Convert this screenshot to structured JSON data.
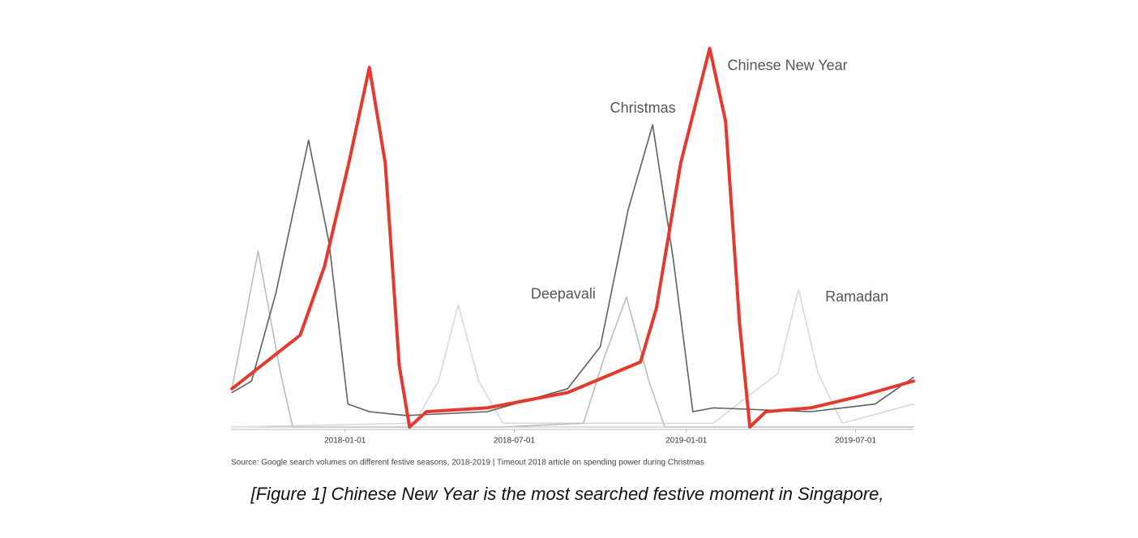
{
  "chart_data": {
    "type": "line",
    "source": "Source: Google search volumes on different festive seasons, 2018-2019 | Timeout 2018 article on spending power during Christmas",
    "caption": "[Figure 1] Chinese New Year is the most searched festive moment in Singapore,",
    "xlim": [
      "2017-09-01",
      "2019-09-01"
    ],
    "xticks": [
      "2018-01-01",
      "2018-07-01",
      "2019-01-01",
      "2019-07-01"
    ],
    "ylim": [
      0,
      100
    ],
    "series": [
      {
        "name": "Chinese New Year",
        "color": "#e5392e",
        "x": [
          "2017-09-02",
          "2017-11-14",
          "2017-12-10",
          "2018-01-05",
          "2018-01-27",
          "2018-02-13",
          "2018-02-28",
          "2018-03-11",
          "2018-03-29",
          "2018-06-02",
          "2018-08-27",
          "2018-11-13",
          "2018-11-30",
          "2018-12-26",
          "2019-01-26",
          "2019-02-12",
          "2019-02-27",
          "2019-03-10",
          "2019-03-27",
          "2019-05-14",
          "2019-07-05",
          "2019-09-01"
        ],
        "values": [
          10,
          24,
          42,
          69,
          94,
          69,
          16,
          0,
          4,
          5,
          9,
          17,
          31,
          69,
          99,
          80,
          27,
          0,
          4,
          5,
          8,
          12
        ]
      },
      {
        "name": "Christmas",
        "color": "#5f5f5f",
        "x": [
          "2017-09-02",
          "2017-09-23",
          "2017-10-19",
          "2017-11-23",
          "2017-12-15",
          "2018-01-04",
          "2018-01-27",
          "2018-03-07",
          "2018-06-02",
          "2018-08-27",
          "2018-10-01",
          "2018-10-31",
          "2018-11-26",
          "2018-12-18",
          "2019-01-08",
          "2019-01-30",
          "2019-05-14",
          "2019-07-22",
          "2019-09-01"
        ],
        "values": [
          9,
          12,
          35,
          75,
          48,
          6,
          4,
          3,
          4,
          10,
          21,
          57,
          79,
          44,
          4,
          5,
          4,
          6,
          13
        ]
      },
      {
        "name": "Deepavali",
        "color": "#bdbdbd",
        "x": [
          "2017-09-02",
          "2017-09-30",
          "2017-10-24",
          "2017-11-06",
          "2018-06-19",
          "2018-09-13",
          "2018-10-05",
          "2018-10-29",
          "2018-11-22",
          "2018-12-09",
          "2019-09-01"
        ],
        "values": [
          10,
          46,
          14,
          0,
          0,
          1,
          18,
          34,
          12,
          0,
          0
        ]
      },
      {
        "name": "Ramadan",
        "color": "#d9d9d9",
        "x": [
          "2017-09-02",
          "2018-03-16",
          "2018-04-11",
          "2018-05-02",
          "2018-05-24",
          "2018-06-19",
          "2019-01-30",
          "2019-04-09",
          "2019-05-01",
          "2019-05-22",
          "2019-06-17",
          "2019-09-01"
        ],
        "values": [
          0,
          1,
          12,
          32,
          12,
          1,
          1,
          14,
          36,
          14,
          1,
          6
        ]
      }
    ]
  }
}
